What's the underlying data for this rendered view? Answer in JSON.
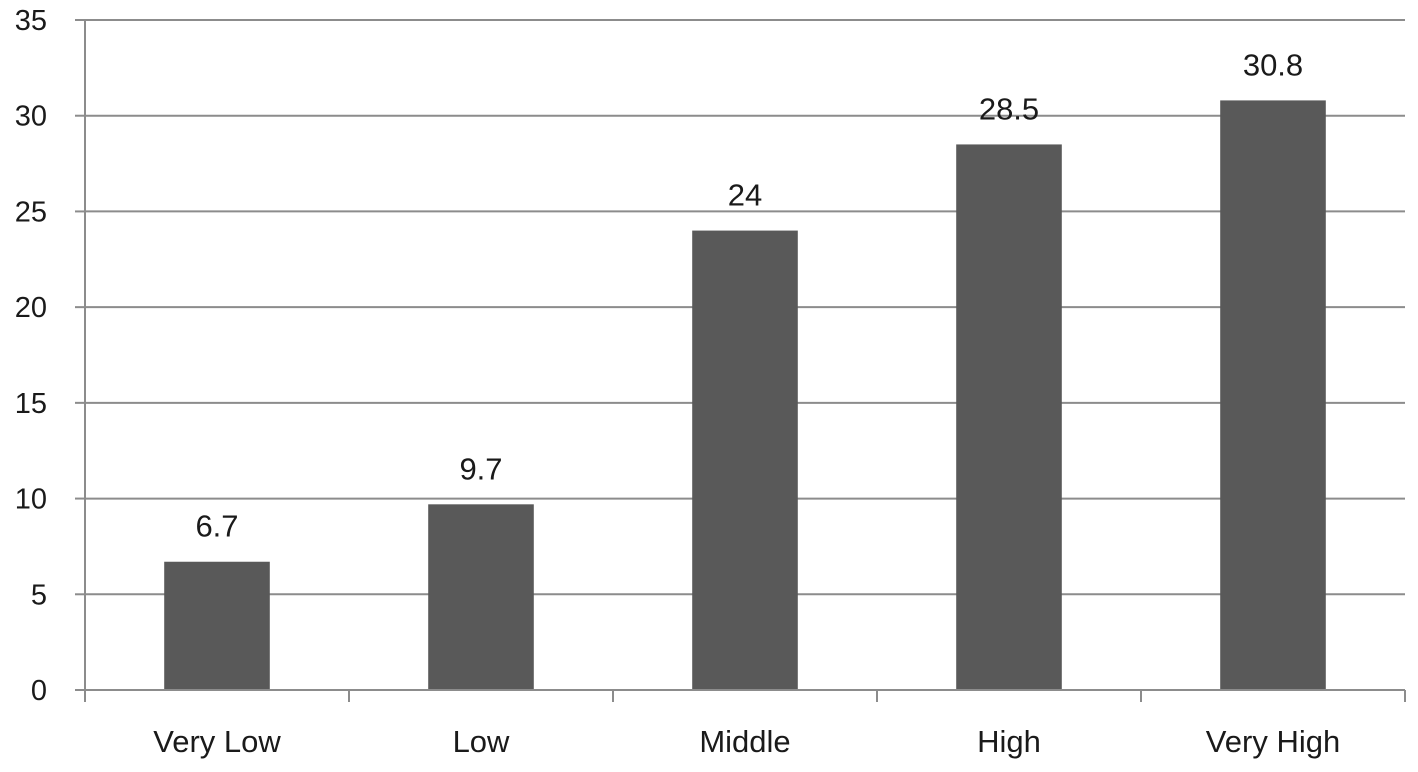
{
  "chart_data": {
    "type": "bar",
    "title": "",
    "xlabel": "",
    "ylabel": "",
    "categories": [
      "Very Low",
      "Low",
      "Middle",
      "High",
      "Very High"
    ],
    "values": [
      6.7,
      9.7,
      24,
      28.5,
      30.8
    ],
    "data_labels": [
      "6.7",
      "9.7",
      "24",
      "28.5",
      "30.8"
    ],
    "ylim": [
      0,
      35
    ],
    "y_ticks": [
      0,
      5,
      10,
      15,
      20,
      25,
      30,
      35
    ],
    "y_tick_labels": [
      "0",
      "5",
      "10",
      "15",
      "20",
      "25",
      "30",
      "35"
    ],
    "grid": true,
    "legend": "none",
    "colors": {
      "bar": "#595959",
      "grid": "#8c8c8c",
      "text": "#1a1a1a"
    }
  }
}
